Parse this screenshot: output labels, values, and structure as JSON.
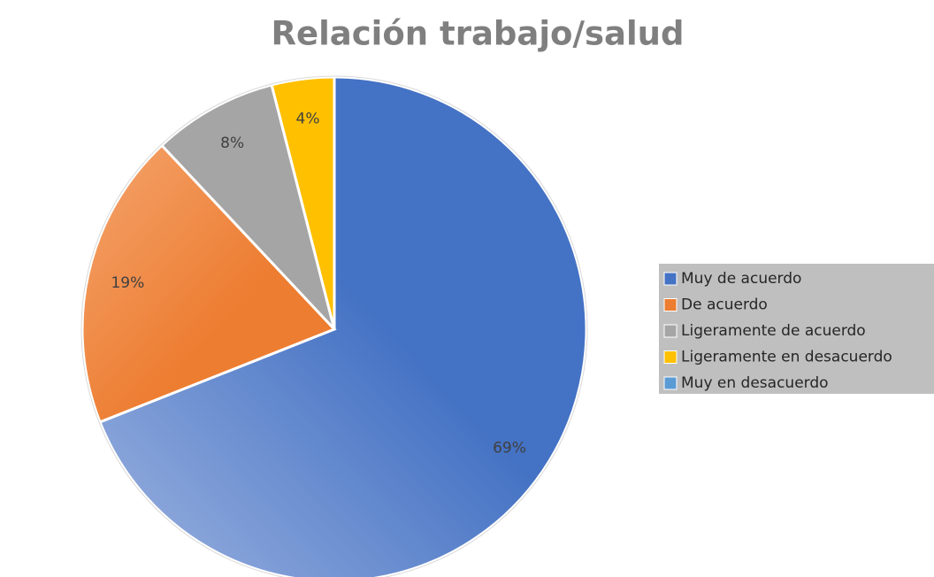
{
  "chart_data": {
    "type": "pie",
    "title": "Relación trabajo/salud",
    "categories": [
      "Muy de acuerdo",
      "De acuerdo",
      "Ligeramente de acuerdo",
      "Ligeramente en desacuerdo",
      "Muy en desacuerdo"
    ],
    "values": [
      69,
      19,
      8,
      4,
      0
    ],
    "value_labels": [
      "69%",
      "19%",
      "8%",
      "4%",
      null
    ],
    "colors": [
      "#4472c4",
      "#ed7d31",
      "#a5a5a5",
      "#ffc000",
      "#5b9bd5"
    ],
    "legend": "right"
  }
}
